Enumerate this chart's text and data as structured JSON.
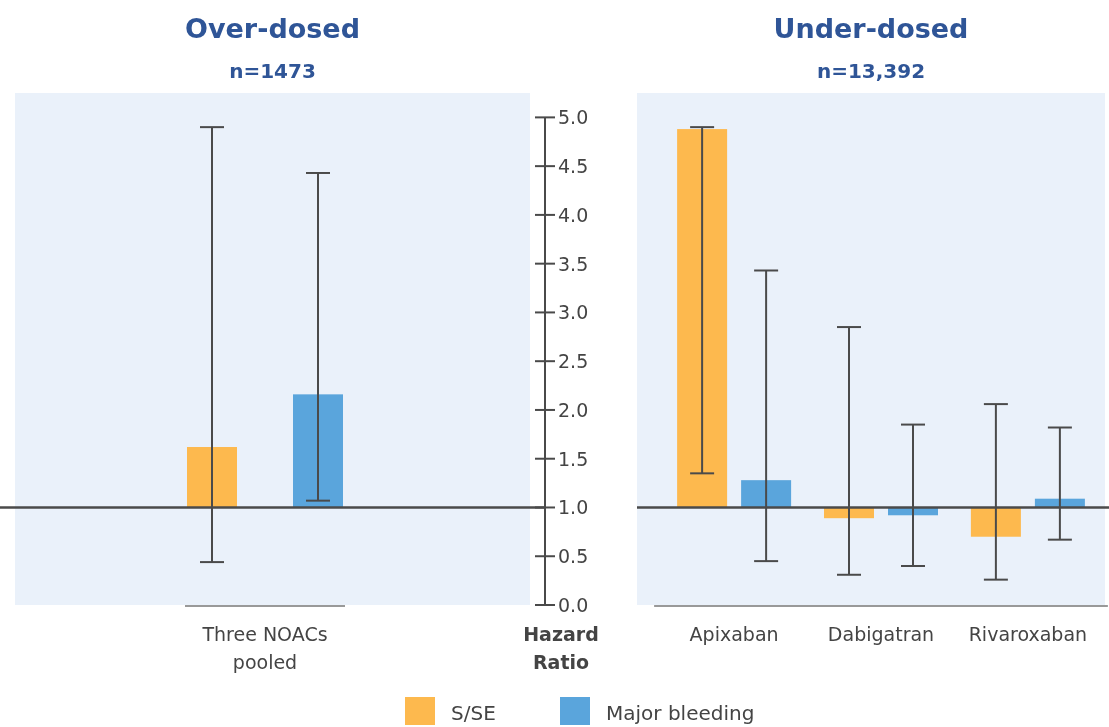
{
  "chart_data": [
    {
      "type": "bar",
      "title": "Over-dosed",
      "subtitle": "n=1473",
      "categories": [
        "Three NOACs pooled"
      ],
      "ylim": [
        0,
        5.25
      ],
      "tick_labels": "x",
      "legend": false,
      "series": [
        {
          "color": "#fdb94e",
          "base": [
            1
          ],
          "values": [
            0.62
          ],
          "errors": [
            [
              0.44,
              4.9
            ]
          ]
        },
        {
          "color": "#5aa5dc",
          "base": [
            1
          ],
          "values": [
            1.16
          ],
          "errors": [
            [
              1.07,
              4.43
            ]
          ]
        }
      ],
      "ref_lines": [
        {
          "axis": "y",
          "value": 1
        }
      ]
    },
    {
      "type": "bar",
      "title": "Under-dosed",
      "subtitle": "n=13,392",
      "ylabel": "Hazard Ratio",
      "categories": [
        "Apixaban",
        "Dabigatran",
        "Rivaroxaban"
      ],
      "ylim": [
        0,
        5.25
      ],
      "legend": "bottom",
      "yticks": [
        {
          "value": 0,
          "label": "0.0"
        },
        {
          "value": 0.5,
          "label": "0.5"
        },
        {
          "value": 1,
          "label": "1.0"
        },
        {
          "value": 1.5,
          "label": "1.5"
        },
        {
          "value": 2,
          "label": "2.0"
        },
        {
          "value": 2.5,
          "label": "2.5"
        },
        {
          "value": 3,
          "label": "3.0"
        },
        {
          "value": 3.5,
          "label": "3.5"
        },
        {
          "value": 4,
          "label": "4.0"
        },
        {
          "value": 4.5,
          "label": "4.5"
        },
        {
          "value": 5,
          "label": "5.0"
        }
      ],
      "series": [
        {
          "name": "S/SE",
          "color": "#fdb94e",
          "base": [
            1,
            1,
            1
          ],
          "values": [
            3.88,
            -0.11,
            -0.3
          ],
          "errors": [
            [
              1.35,
              4.9
            ],
            [
              0.31,
              2.85
            ],
            [
              0.26,
              2.06
            ]
          ]
        },
        {
          "name": "Major bleeding",
          "color": "#5aa5dc",
          "base": [
            1,
            1,
            1
          ],
          "values": [
            0.28,
            -0.08,
            0.09
          ],
          "errors": [
            [
              0.45,
              3.43
            ],
            [
              0.4,
              1.85
            ],
            [
              0.67,
              1.82
            ]
          ]
        }
      ],
      "ref_lines": [
        {
          "axis": "y",
          "value": 1
        }
      ]
    }
  ]
}
